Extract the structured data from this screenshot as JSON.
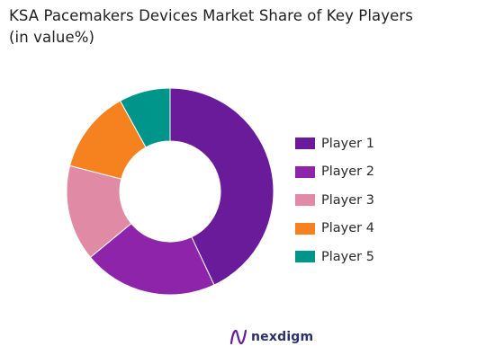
{
  "chart_data": {
    "type": "pie",
    "title": "KSA Pacemakers Devices Market Share of Key Players",
    "subtitle": "(in value%)",
    "donut": true,
    "categories": [
      "Player 1",
      "Player 2",
      "Player 3",
      "Player 4",
      "Player 5"
    ],
    "values": [
      43,
      21,
      15,
      13,
      8
    ],
    "colors": [
      "#6a1b9a",
      "#8e24aa",
      "#e08aa6",
      "#f5811f",
      "#00958a"
    ],
    "legend": "right"
  },
  "brand": {
    "name": "nexdigm",
    "icon": "nexdigm-logo-icon",
    "color": "#2b2f6b"
  }
}
